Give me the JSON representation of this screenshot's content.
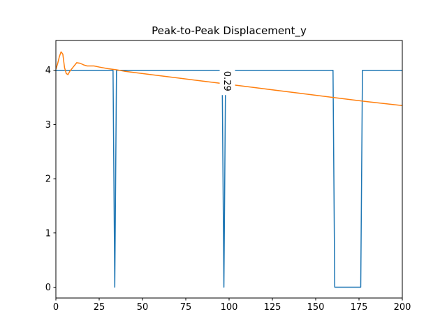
{
  "chart_data": {
    "type": "line",
    "title": "Peak-to-Peak Displacement_y",
    "xlabel": "",
    "ylabel": "",
    "xlim": [
      0,
      200
    ],
    "ylim": [
      -0.2,
      4.55
    ],
    "xticks": [
      0,
      25,
      50,
      75,
      100,
      125,
      150,
      175,
      200
    ],
    "yticks": [
      0,
      1,
      2,
      3,
      4
    ],
    "grid": false,
    "legend": "none",
    "series": [
      {
        "color": "#1f77b4",
        "x": [
          0,
          33,
          34,
          35,
          96,
          97,
          98,
          160,
          161,
          176,
          177,
          200
        ],
        "y": [
          4,
          4,
          0,
          4,
          4,
          0,
          4,
          4,
          0,
          0,
          4,
          4
        ]
      },
      {
        "color": "#ff7f0e",
        "x": [
          0,
          1,
          2,
          3,
          4,
          5,
          6,
          7,
          8,
          10,
          12,
          14,
          16,
          18,
          20,
          22,
          25,
          30,
          35,
          40,
          60,
          80,
          100,
          120,
          140,
          160,
          180,
          200
        ],
        "y": [
          4.02,
          4.12,
          4.25,
          4.34,
          4.3,
          4.05,
          3.94,
          3.92,
          3.98,
          4.06,
          4.14,
          4.13,
          4.1,
          4.08,
          4.08,
          4.08,
          4.06,
          4.03,
          4.01,
          3.98,
          3.9,
          3.82,
          3.74,
          3.66,
          3.58,
          3.5,
          3.42,
          3.35
        ]
      }
    ],
    "annotations": [
      {
        "text": "0.29",
        "x": 99,
        "y": 3.8,
        "rotation": 90
      }
    ]
  }
}
